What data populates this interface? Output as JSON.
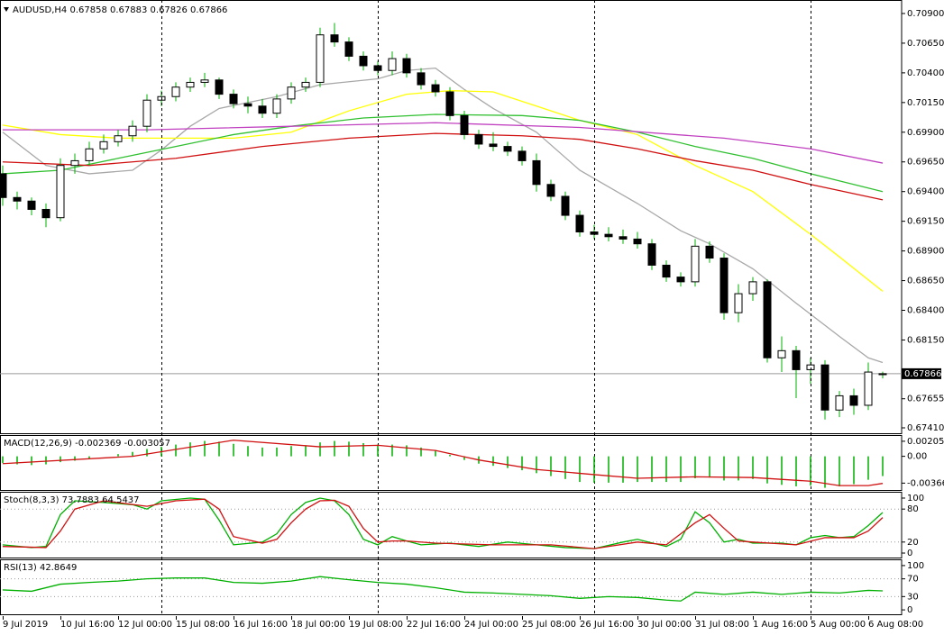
{
  "chart_data": [
    {
      "type": "candlestick",
      "title": "AUDUSD,H4  0.67858 0.67883 0.67826 0.67866",
      "categories": [
        "9 Jul 2019",
        null,
        null,
        null,
        "10 Jul 16:00",
        null,
        null,
        null,
        "12 Jul 00:00",
        null,
        null,
        null,
        "15 Jul 08:00",
        null,
        null,
        null,
        "16 Jul 16:00",
        null,
        null,
        null,
        "18 Jul 00:00",
        null,
        null,
        null,
        "19 Jul 08:00",
        null,
        null,
        null,
        "22 Jul 16:00",
        null,
        null,
        null,
        "24 Jul 00:00",
        null,
        null,
        null,
        "25 Jul 08:00",
        null,
        null,
        null,
        "26 Jul 16:00",
        null,
        null,
        null,
        "30 Jul 00:00",
        null,
        null,
        null,
        "31 Jul 08:00",
        null,
        null,
        null,
        "1 Aug 16:00",
        null,
        null,
        null,
        "5 Aug 00:00",
        null,
        null,
        null,
        "6 Aug 08:00",
        null
      ],
      "open": [
        0.6955,
        0.6935,
        0.6932,
        0.6925,
        0.6918,
        0.6962,
        0.6966,
        0.6976,
        0.6982,
        0.6987,
        0.6995,
        0.7017,
        0.702,
        0.7028,
        0.7032,
        0.7034,
        0.7022,
        0.7014,
        0.7012,
        0.7006,
        0.7018,
        0.7028,
        0.7032,
        0.7072,
        0.7066,
        0.7054,
        0.7046,
        0.7042,
        0.7052,
        0.704,
        0.703,
        0.7024,
        0.7004,
        0.6988,
        0.698,
        0.6978,
        0.6974,
        0.6966,
        0.6946,
        0.6936,
        0.692,
        0.6906,
        0.6904,
        0.6902,
        0.69,
        0.6896,
        0.6878,
        0.6868,
        0.6864,
        0.6894,
        0.6884,
        0.6838,
        0.6854,
        0.6864,
        0.68,
        0.6806,
        0.679,
        0.6794,
        0.6756,
        0.6768,
        0.676,
        0.67858
      ],
      "high": [
        0.6962,
        0.694,
        0.6935,
        0.693,
        0.6968,
        0.6972,
        0.6982,
        0.6988,
        0.6992,
        0.7,
        0.7022,
        0.7025,
        0.7032,
        0.7036,
        0.704,
        0.7036,
        0.7026,
        0.702,
        0.7018,
        0.7022,
        0.7032,
        0.7036,
        0.7078,
        0.7082,
        0.707,
        0.7058,
        0.705,
        0.7058,
        0.7056,
        0.7044,
        0.7034,
        0.7028,
        0.7008,
        0.6992,
        0.699,
        0.6982,
        0.6978,
        0.6972,
        0.695,
        0.694,
        0.6924,
        0.6912,
        0.691,
        0.6908,
        0.6906,
        0.69,
        0.6882,
        0.6872,
        0.69,
        0.6898,
        0.6888,
        0.6862,
        0.6868,
        0.6866,
        0.6818,
        0.681,
        0.68,
        0.6798,
        0.6772,
        0.6774,
        0.6796,
        0.67883
      ],
      "low": [
        0.6928,
        0.6925,
        0.692,
        0.691,
        0.6915,
        0.6955,
        0.6962,
        0.6972,
        0.6978,
        0.6982,
        0.699,
        0.7012,
        0.7016,
        0.7024,
        0.7028,
        0.7018,
        0.701,
        0.7006,
        0.7002,
        0.7002,
        0.7014,
        0.7024,
        0.7028,
        0.7062,
        0.705,
        0.7042,
        0.7038,
        0.7038,
        0.7036,
        0.7026,
        0.702,
        0.7,
        0.6984,
        0.6976,
        0.6974,
        0.697,
        0.6962,
        0.694,
        0.6932,
        0.6916,
        0.6902,
        0.69,
        0.6898,
        0.6896,
        0.6892,
        0.6874,
        0.6864,
        0.686,
        0.686,
        0.688,
        0.6832,
        0.683,
        0.6848,
        0.6796,
        0.6788,
        0.6766,
        0.6778,
        0.6748,
        0.675,
        0.6752,
        0.6756,
        0.67826
      ],
      "close": [
        0.6935,
        0.6932,
        0.6925,
        0.6918,
        0.6962,
        0.6966,
        0.6976,
        0.6982,
        0.6987,
        0.6995,
        0.7017,
        0.702,
        0.7028,
        0.7032,
        0.7034,
        0.7022,
        0.7014,
        0.7012,
        0.7006,
        0.7018,
        0.7028,
        0.7032,
        0.7072,
        0.7066,
        0.7054,
        0.7046,
        0.7042,
        0.7052,
        0.704,
        0.703,
        0.7024,
        0.7004,
        0.6988,
        0.698,
        0.6978,
        0.6974,
        0.6966,
        0.6946,
        0.6936,
        0.692,
        0.6906,
        0.6904,
        0.6902,
        0.69,
        0.6896,
        0.6878,
        0.6868,
        0.6864,
        0.6894,
        0.6884,
        0.6838,
        0.6854,
        0.6864,
        0.68,
        0.6806,
        0.679,
        0.6794,
        0.6756,
        0.6768,
        0.676,
        0.6788,
        0.67866
      ],
      "up_color": "#ffffff",
      "down_color": "#000000",
      "wick_color": "#00b000",
      "series": [
        {
          "color": "#a8a8a8",
          "x": [
            0,
            3,
            6,
            9,
            11,
            13,
            15,
            19,
            22,
            26,
            28,
            30,
            32,
            34,
            37,
            40,
            44,
            47,
            49,
            52,
            55,
            58,
            60,
            61
          ],
          "values": [
            0.699,
            0.6962,
            0.6955,
            0.6958,
            0.6975,
            0.6995,
            0.701,
            0.702,
            0.703,
            0.7035,
            0.7042,
            0.7044,
            0.7026,
            0.701,
            0.699,
            0.6958,
            0.693,
            0.6907,
            0.6896,
            0.6875,
            0.6846,
            0.6818,
            0.68,
            0.6796
          ]
        },
        {
          "color": "#ffff00",
          "x": [
            0,
            4,
            8,
            12,
            16,
            20,
            24,
            28,
            31,
            34,
            37,
            40,
            44,
            48,
            52,
            56,
            58,
            61
          ],
          "values": [
            0.6996,
            0.6988,
            0.6985,
            0.6985,
            0.6985,
            0.699,
            0.7008,
            0.7022,
            0.7025,
            0.7024,
            0.7012,
            0.7,
            0.6988,
            0.6962,
            0.694,
            0.6904,
            0.6885,
            0.6856
          ]
        },
        {
          "color": "#30c030",
          "x": [
            0,
            4,
            8,
            12,
            16,
            20,
            25,
            30,
            36,
            40,
            44,
            48,
            52,
            56,
            61
          ],
          "values": [
            0.6955,
            0.6958,
            0.6968,
            0.6978,
            0.6988,
            0.6995,
            0.7002,
            0.7005,
            0.7004,
            0.7,
            0.699,
            0.6978,
            0.6968,
            0.6955,
            0.694
          ]
        },
        {
          "color": "#d01010",
          "x": [
            0,
            6,
            12,
            18,
            24,
            30,
            36,
            40,
            44,
            48,
            52,
            56,
            61
          ],
          "values": [
            0.6965,
            0.6962,
            0.6968,
            0.6978,
            0.6985,
            0.6989,
            0.6987,
            0.6984,
            0.6976,
            0.6966,
            0.6958,
            0.6946,
            0.6933
          ]
        },
        {
          "color": "#c040c0",
          "x": [
            0,
            10,
            20,
            30,
            40,
            50,
            56,
            61
          ],
          "values": [
            0.6992,
            0.6992,
            0.6995,
            0.6998,
            0.6994,
            0.6985,
            0.6976,
            0.6964
          ]
        }
      ],
      "current": 0.67866,
      "separators": [
        11,
        26,
        41,
        56
      ],
      "ylim": [
        0.67357,
        0.71006
      ],
      "yticks": [
        {
          "value": 0.709,
          "label": "0.70900"
        },
        {
          "value": 0.7065,
          "label": "0.70650"
        },
        {
          "value": 0.704,
          "label": "0.70400"
        },
        {
          "value": 0.7015,
          "label": "0.70150"
        },
        {
          "value": 0.699,
          "label": "0.69900"
        },
        {
          "value": 0.6965,
          "label": "0.69650"
        },
        {
          "value": 0.694,
          "label": "0.69400"
        },
        {
          "value": 0.6915,
          "label": "0.69150"
        },
        {
          "value": 0.689,
          "label": "0.68900"
        },
        {
          "value": 0.6865,
          "label": "0.68650"
        },
        {
          "value": 0.684,
          "label": "0.68400"
        },
        {
          "value": 0.6815,
          "label": "0.68150"
        },
        0.67655,
        {
          "value": 0.6741,
          "label": "0.67410"
        }
      ]
    },
    {
      "type": "macd",
      "title": "MACD(12,26,9) -0.002369 -0.003057",
      "color": "#00b000",
      "values": [
        -0.0009,
        -0.0011,
        -0.0012,
        -0.0011,
        -0.0008,
        -0.0006,
        -0.0003,
        0.0,
        0.0003,
        0.0006,
        0.001,
        0.0013,
        0.0016,
        0.0019,
        0.0021,
        0.002,
        0.0017,
        0.0014,
        0.0012,
        0.0012,
        0.0014,
        0.0015,
        0.0019,
        0.0021,
        0.002,
        0.0018,
        0.0016,
        0.0016,
        0.0015,
        0.0012,
        0.0008,
        0.0002,
        -0.0005,
        -0.001,
        -0.0013,
        -0.0016,
        -0.0019,
        -0.0023,
        -0.0027,
        -0.0031,
        -0.0035,
        -0.0036,
        -0.0036,
        -0.0036,
        -0.0035,
        -0.0035,
        -0.0035,
        -0.0035,
        -0.003,
        -0.0029,
        -0.0033,
        -0.0033,
        -0.0031,
        -0.0037,
        -0.0039,
        -0.0041,
        -0.004,
        -0.0043,
        -0.0041,
        -0.0038,
        -0.0032,
        -0.0027
      ],
      "series": [
        {
          "color": "#d01010",
          "x": [
            0,
            9,
            16,
            22,
            26,
            30,
            33,
            37,
            41,
            44,
            48,
            52,
            56,
            58,
            60,
            61
          ],
          "values": [
            -0.001,
            0.0,
            0.0022,
            0.0013,
            0.0015,
            0.0008,
            -0.0005,
            -0.0018,
            -0.0025,
            -0.003,
            -0.0028,
            -0.0029,
            -0.0034,
            -0.004,
            -0.004,
            -0.0037
          ]
        }
      ],
      "ylim": [
        -0.00472,
        0.00278
      ],
      "yticks": [
        0.002055,
        {
          "value": 0,
          "label": "0.00"
        },
        -0.003661
      ]
    },
    {
      "type": "line",
      "title": "Stoch(8,3,3) 73.7883 64.5437",
      "series": [
        {
          "color": "#00b000",
          "x": [
            0,
            2,
            3,
            4,
            5,
            7,
            9,
            10,
            11,
            13,
            14,
            15,
            16,
            18,
            19,
            20,
            21,
            22,
            23,
            24,
            25,
            26,
            27,
            28,
            29,
            31,
            33,
            35,
            37,
            39,
            41,
            43,
            44,
            46,
            47,
            48,
            49,
            50,
            51,
            52,
            54,
            55,
            56,
            57,
            58,
            59,
            60,
            61
          ],
          "values": [
            15,
            10,
            12,
            70,
            95,
            92,
            88,
            80,
            95,
            100,
            98,
            60,
            15,
            20,
            35,
            70,
            92,
            100,
            95,
            70,
            25,
            15,
            30,
            22,
            15,
            18,
            12,
            20,
            15,
            10,
            8,
            20,
            25,
            12,
            25,
            75,
            55,
            20,
            25,
            18,
            18,
            15,
            28,
            32,
            28,
            30,
            50,
            73.7883
          ]
        },
        {
          "color": "#d01010",
          "x": [
            0,
            3,
            4,
            5,
            7,
            10,
            12,
            14,
            15,
            16,
            18,
            19,
            20,
            21,
            22,
            23,
            24,
            25,
            26,
            27,
            28,
            30,
            34,
            38,
            41,
            44,
            46,
            48,
            49,
            50,
            51,
            52,
            55,
            57,
            59,
            60,
            61
          ],
          "values": [
            12,
            10,
            40,
            80,
            95,
            85,
            95,
            98,
            80,
            30,
            18,
            25,
            55,
            80,
            95,
            96,
            85,
            45,
            20,
            22,
            22,
            18,
            15,
            15,
            8,
            20,
            15,
            55,
            70,
            45,
            22,
            20,
            15,
            28,
            28,
            40,
            64.5437
          ]
        }
      ],
      "levels": [
        80,
        20
      ],
      "ylim": [
        -9.8,
        109.8
      ],
      "yticks": [
        100,
        80,
        20,
        0
      ]
    },
    {
      "type": "line",
      "title": "RSI(13) 42.8649",
      "series": [
        {
          "color": "#00b000",
          "x": [
            0,
            2,
            4,
            6,
            8,
            10,
            12,
            14,
            16,
            18,
            20,
            22,
            24,
            26,
            28,
            30,
            32,
            34,
            36,
            38,
            40,
            42,
            44,
            46,
            47,
            48,
            50,
            52,
            54,
            56,
            58,
            60,
            61
          ],
          "values": [
            45,
            42,
            58,
            62,
            65,
            70,
            72,
            72,
            62,
            60,
            65,
            75,
            68,
            62,
            58,
            50,
            40,
            38,
            35,
            32,
            26,
            30,
            28,
            22,
            20,
            40,
            35,
            40,
            35,
            40,
            38,
            44,
            42.8649
          ]
        }
      ],
      "levels": [
        70,
        30
      ],
      "ylim": [
        -12,
        112
      ],
      "yticks": [
        100,
        70,
        30,
        0
      ]
    }
  ]
}
